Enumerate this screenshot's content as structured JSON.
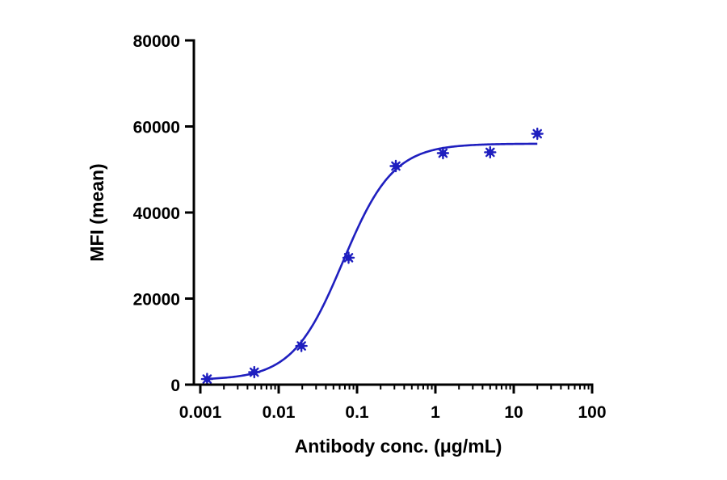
{
  "chart_data": {
    "type": "scatter",
    "title": "",
    "xlabel": "Antibody conc. (μg/mL)",
    "ylabel": "MFI (mean)",
    "x_scale": "log",
    "xlim": [
      0.001,
      100
    ],
    "ylim": [
      0,
      80000
    ],
    "x_ticks": [
      0.001,
      0.01,
      0.1,
      1,
      10,
      100
    ],
    "x_tick_labels": [
      "0.001",
      "0.01",
      "0.1",
      "1",
      "10",
      "100"
    ],
    "y_ticks": [
      0,
      20000,
      40000,
      60000,
      80000
    ],
    "y_tick_labels": [
      "0",
      "20000",
      "40000",
      "60000",
      "80000"
    ],
    "grid": false,
    "legend": "none",
    "series": [
      {
        "marker": "asterisk",
        "color": "#1f1fbf",
        "fit": "four-parameter logistic",
        "x": [
          0.00122,
          0.00488,
          0.0195,
          0.078,
          0.3125,
          1.25,
          5,
          20
        ],
        "y": [
          1300,
          2900,
          9000,
          29500,
          50800,
          53800,
          54000,
          58300
        ]
      }
    ],
    "fit_curve": {
      "color": "#1f1fbf",
      "bottom": 1100,
      "top": 56000,
      "ec50": 0.066,
      "hill": 1.35,
      "x_range": [
        0.00122,
        20
      ]
    }
  }
}
